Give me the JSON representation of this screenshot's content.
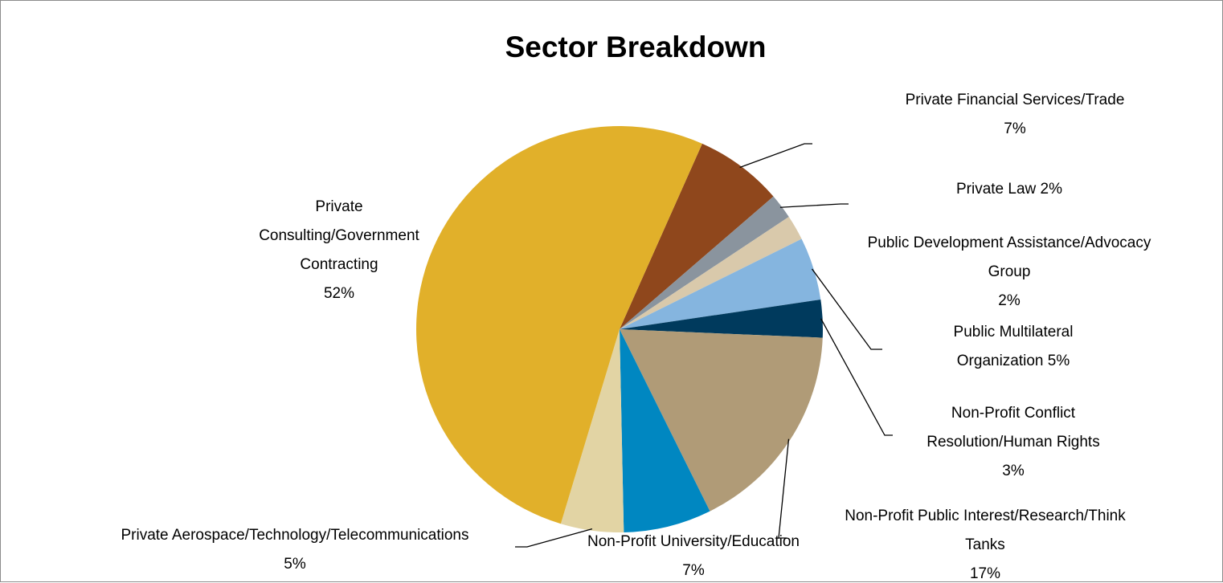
{
  "chart_data": {
    "type": "pie",
    "title": "Sector Breakdown",
    "categories": [
      "Private Financial Services/Trade",
      "Private Law",
      "Public Development Assistance/Advocacy Group",
      "Public Multilateral Organization",
      "Non-Profit Conflict Resolution/Human Rights",
      "Non-Profit Public Interest/Research/Think Tanks",
      "Non-Profit University/Education",
      "Private Aerospace/Technology/Telecommunications",
      "Private Consulting/Government Contracting"
    ],
    "values": [
      7,
      2,
      2,
      5,
      3,
      17,
      7,
      5,
      52
    ],
    "colors": [
      "#8f471c",
      "#8a949e",
      "#d9c9ab",
      "#85b5df",
      "#003a5d",
      "#b09b77",
      "#0087c1",
      "#e2d4a4",
      "#e1b02a"
    ],
    "start_angle_deg": 24,
    "data_labels": [
      [
        "Private Financial Services/Trade",
        "7%"
      ],
      [
        "Private Law 2%"
      ],
      [
        "Public Development Assistance/Advocacy",
        "Group",
        "2%"
      ],
      [
        "Public Multilateral",
        "Organization 5%"
      ],
      [
        "Non-Profit Conflict",
        "Resolution/Human Rights",
        "3%"
      ],
      [
        "Non-Profit Public Interest/Research/Think",
        "Tanks",
        "17%"
      ],
      [
        "Non-Profit University/Education",
        "7%"
      ],
      [
        "Private Aerospace/Technology/Telecommunications",
        "5%"
      ],
      [
        "Private",
        "Consulting/Government",
        "Contracting",
        "52%"
      ]
    ],
    "legend": "none"
  }
}
